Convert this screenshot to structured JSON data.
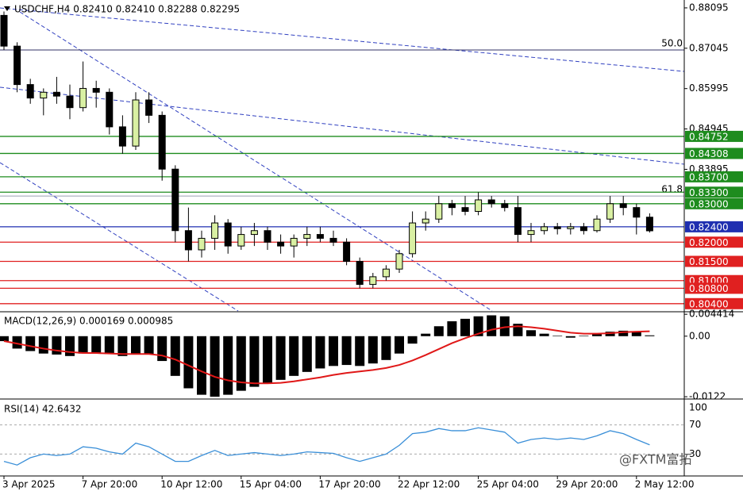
{
  "chart_data": [
    {
      "type": "candlestick",
      "title": "USDCHF,H4  0.82410 0.82410 0.82288 0.82295",
      "categories": [
        "3 Apr 2025",
        null,
        null,
        null,
        null,
        null,
        "7 Apr 20:00",
        null,
        null,
        null,
        null,
        null,
        "10 Apr 12:00",
        null,
        null,
        null,
        null,
        null,
        "15 Apr 04:00",
        null,
        null,
        null,
        null,
        null,
        "17 Apr 20:00",
        null,
        null,
        null,
        null,
        null,
        "22 Apr 12:00",
        null,
        null,
        null,
        null,
        null,
        "25 Apr 04:00",
        null,
        null,
        null,
        null,
        null,
        "29 Apr 20:00",
        null,
        null,
        null,
        null,
        null,
        "2 May 12:00",
        null
      ],
      "ohlc": [
        [
          0.879,
          0.88,
          0.87,
          0.871
        ],
        [
          0.871,
          0.872,
          0.859,
          0.861
        ],
        [
          0.861,
          0.8625,
          0.856,
          0.8575
        ],
        [
          0.8575,
          0.86,
          0.853,
          0.859
        ],
        [
          0.859,
          0.863,
          0.856,
          0.858
        ],
        [
          0.858,
          0.861,
          0.852,
          0.855
        ],
        [
          0.855,
          0.867,
          0.854,
          0.86
        ],
        [
          0.86,
          0.862,
          0.855,
          0.859
        ],
        [
          0.859,
          0.86,
          0.848,
          0.85
        ],
        [
          0.85,
          0.853,
          0.843,
          0.845
        ],
        [
          0.845,
          0.859,
          0.844,
          0.857
        ],
        [
          0.857,
          0.859,
          0.851,
          0.853
        ],
        [
          0.853,
          0.854,
          0.836,
          0.839
        ],
        [
          0.839,
          0.84,
          0.82,
          0.823
        ],
        [
          0.823,
          0.829,
          0.815,
          0.818
        ],
        [
          0.818,
          0.823,
          0.816,
          0.821
        ],
        [
          0.821,
          0.827,
          0.818,
          0.825
        ],
        [
          0.825,
          0.826,
          0.817,
          0.819
        ],
        [
          0.819,
          0.824,
          0.818,
          0.822
        ],
        [
          0.822,
          0.825,
          0.819,
          0.823
        ],
        [
          0.823,
          0.824,
          0.818,
          0.82
        ],
        [
          0.82,
          0.822,
          0.817,
          0.819
        ],
        [
          0.819,
          0.822,
          0.816,
          0.821
        ],
        [
          0.821,
          0.824,
          0.819,
          0.822
        ],
        [
          0.822,
          0.824,
          0.82,
          0.821
        ],
        [
          0.821,
          0.823,
          0.819,
          0.82
        ],
        [
          0.82,
          0.821,
          0.814,
          0.815
        ],
        [
          0.815,
          0.816,
          0.808,
          0.809
        ],
        [
          0.809,
          0.812,
          0.808,
          0.811
        ],
        [
          0.811,
          0.814,
          0.81,
          0.813
        ],
        [
          0.813,
          0.818,
          0.812,
          0.817
        ],
        [
          0.817,
          0.828,
          0.816,
          0.825
        ],
        [
          0.825,
          0.828,
          0.823,
          0.826
        ],
        [
          0.826,
          0.832,
          0.825,
          0.83
        ],
        [
          0.83,
          0.831,
          0.827,
          0.829
        ],
        [
          0.829,
          0.832,
          0.827,
          0.828
        ],
        [
          0.828,
          0.833,
          0.827,
          0.831
        ],
        [
          0.831,
          0.832,
          0.829,
          0.83
        ],
        [
          0.83,
          0.831,
          0.828,
          0.829
        ],
        [
          0.829,
          0.832,
          0.82,
          0.822
        ],
        [
          0.822,
          0.825,
          0.82,
          0.823
        ],
        [
          0.823,
          0.825,
          0.822,
          0.824
        ],
        [
          0.824,
          0.825,
          0.822,
          0.8235
        ],
        [
          0.8235,
          0.825,
          0.822,
          0.824
        ],
        [
          0.824,
          0.825,
          0.822,
          0.823
        ],
        [
          0.823,
          0.827,
          0.8225,
          0.826
        ],
        [
          0.826,
          0.832,
          0.825,
          0.83
        ],
        [
          0.83,
          0.832,
          0.827,
          0.829
        ],
        [
          0.829,
          0.83,
          0.822,
          0.8265
        ],
        [
          0.8265,
          0.8275,
          0.8225,
          0.82295
        ]
      ],
      "up_color": "#d9f0a3",
      "down_color": "#000000",
      "ylim": [
        0.8021,
        0.883
      ],
      "yticks": [
        0.88095,
        0.87045,
        0.85995,
        0.84945,
        0.83895
      ],
      "levels": [
        {
          "value": 0.84752,
          "label": "0.84752",
          "color": "#1e8c1e"
        },
        {
          "value": 0.84308,
          "label": "0.84308",
          "color": "#1e8c1e"
        },
        {
          "value": 0.837,
          "label": "0.83700",
          "color": "#1e8c1e"
        },
        {
          "value": 0.833,
          "label": "0.83300",
          "color": "#1e8c1e"
        },
        {
          "value": 0.83,
          "label": "0.83000",
          "color": "#1e8c1e"
        },
        {
          "value": 0.824,
          "label": "0.82400",
          "color": "#1f2fb0"
        },
        {
          "value": 0.82,
          "label": "0.82000",
          "color": "#e02020"
        },
        {
          "value": 0.815,
          "label": "0.81500",
          "color": "#e02020"
        },
        {
          "value": 0.81,
          "label": "0.81000",
          "color": "#e02020"
        },
        {
          "value": 0.808,
          "label": "0.80800",
          "color": "#e02020"
        },
        {
          "value": 0.804,
          "label": "0.80400",
          "color": "#e02020"
        }
      ],
      "annotations": [
        {
          "value": 0.87,
          "label": "50.0",
          "color": "#333366"
        },
        {
          "value": 0.832,
          "label": "61.8",
          "color": "#9aa0b0"
        }
      ]
    },
    {
      "type": "macd",
      "title": "MACD(12,26,9) 0.000169 0.000985",
      "histogram": [
        -0.001,
        -0.0025,
        -0.003,
        -0.0035,
        -0.0037,
        -0.004,
        -0.0035,
        -0.0033,
        -0.0036,
        -0.004,
        -0.0035,
        -0.0036,
        -0.005,
        -0.008,
        -0.0105,
        -0.0118,
        -0.0122,
        -0.0118,
        -0.011,
        -0.0102,
        -0.0095,
        -0.0088,
        -0.008,
        -0.0072,
        -0.0065,
        -0.006,
        -0.0058,
        -0.006,
        -0.0055,
        -0.0048,
        -0.0035,
        -0.0015,
        0.0005,
        0.002,
        0.003,
        0.0035,
        0.004,
        0.0042,
        0.004,
        0.0025,
        0.0012,
        0.0005,
        0.0001,
        -0.0003,
        0.0001,
        0.0004,
        0.0009,
        0.0011,
        0.0008,
        0.000169
      ],
      "signal": [
        -0.001,
        -0.0015,
        -0.002,
        -0.0025,
        -0.0029,
        -0.0032,
        -0.0034,
        -0.0034,
        -0.0035,
        -0.0036,
        -0.0036,
        -0.0036,
        -0.0039,
        -0.0047,
        -0.0059,
        -0.0071,
        -0.0082,
        -0.0089,
        -0.0093,
        -0.0095,
        -0.0095,
        -0.0094,
        -0.0091,
        -0.0087,
        -0.0083,
        -0.0078,
        -0.0074,
        -0.0071,
        -0.0068,
        -0.0064,
        -0.0058,
        -0.0049,
        -0.0038,
        -0.0026,
        -0.0014,
        -0.0004,
        0.0005,
        0.0013,
        0.0018,
        0.002,
        0.0018,
        0.0015,
        0.0011,
        0.0007,
        0.0005,
        0.0005,
        0.0006,
        0.0008,
        0.0009,
        0.000985
      ],
      "histogram_color": "#000000",
      "signal_color": "#e01818",
      "ylim": [
        -0.0125,
        0.0046
      ],
      "yticks": [
        0.004414,
        {
          "value": 0,
          "label": "0.00"
        },
        -0.0122
      ]
    },
    {
      "type": "rsi",
      "title": "RSI(14) 42.6432",
      "values": [
        20,
        15,
        25,
        30,
        28,
        30,
        40,
        38,
        33,
        30,
        45,
        40,
        30,
        20,
        20,
        28,
        35,
        28,
        30,
        32,
        30,
        28,
        30,
        33,
        32,
        31,
        25,
        20,
        25,
        30,
        42,
        58,
        60,
        65,
        62,
        62,
        66,
        63,
        60,
        45,
        50,
        52,
        50,
        52,
        50,
        55,
        62,
        58,
        50,
        42.6432
      ],
      "color": "#3a8fd8",
      "ylim": [
        0,
        100
      ],
      "yticks": [
        100,
        70,
        30
      ]
    },
    {
      "watermark": "@FXTM富拓"
    }
  ]
}
